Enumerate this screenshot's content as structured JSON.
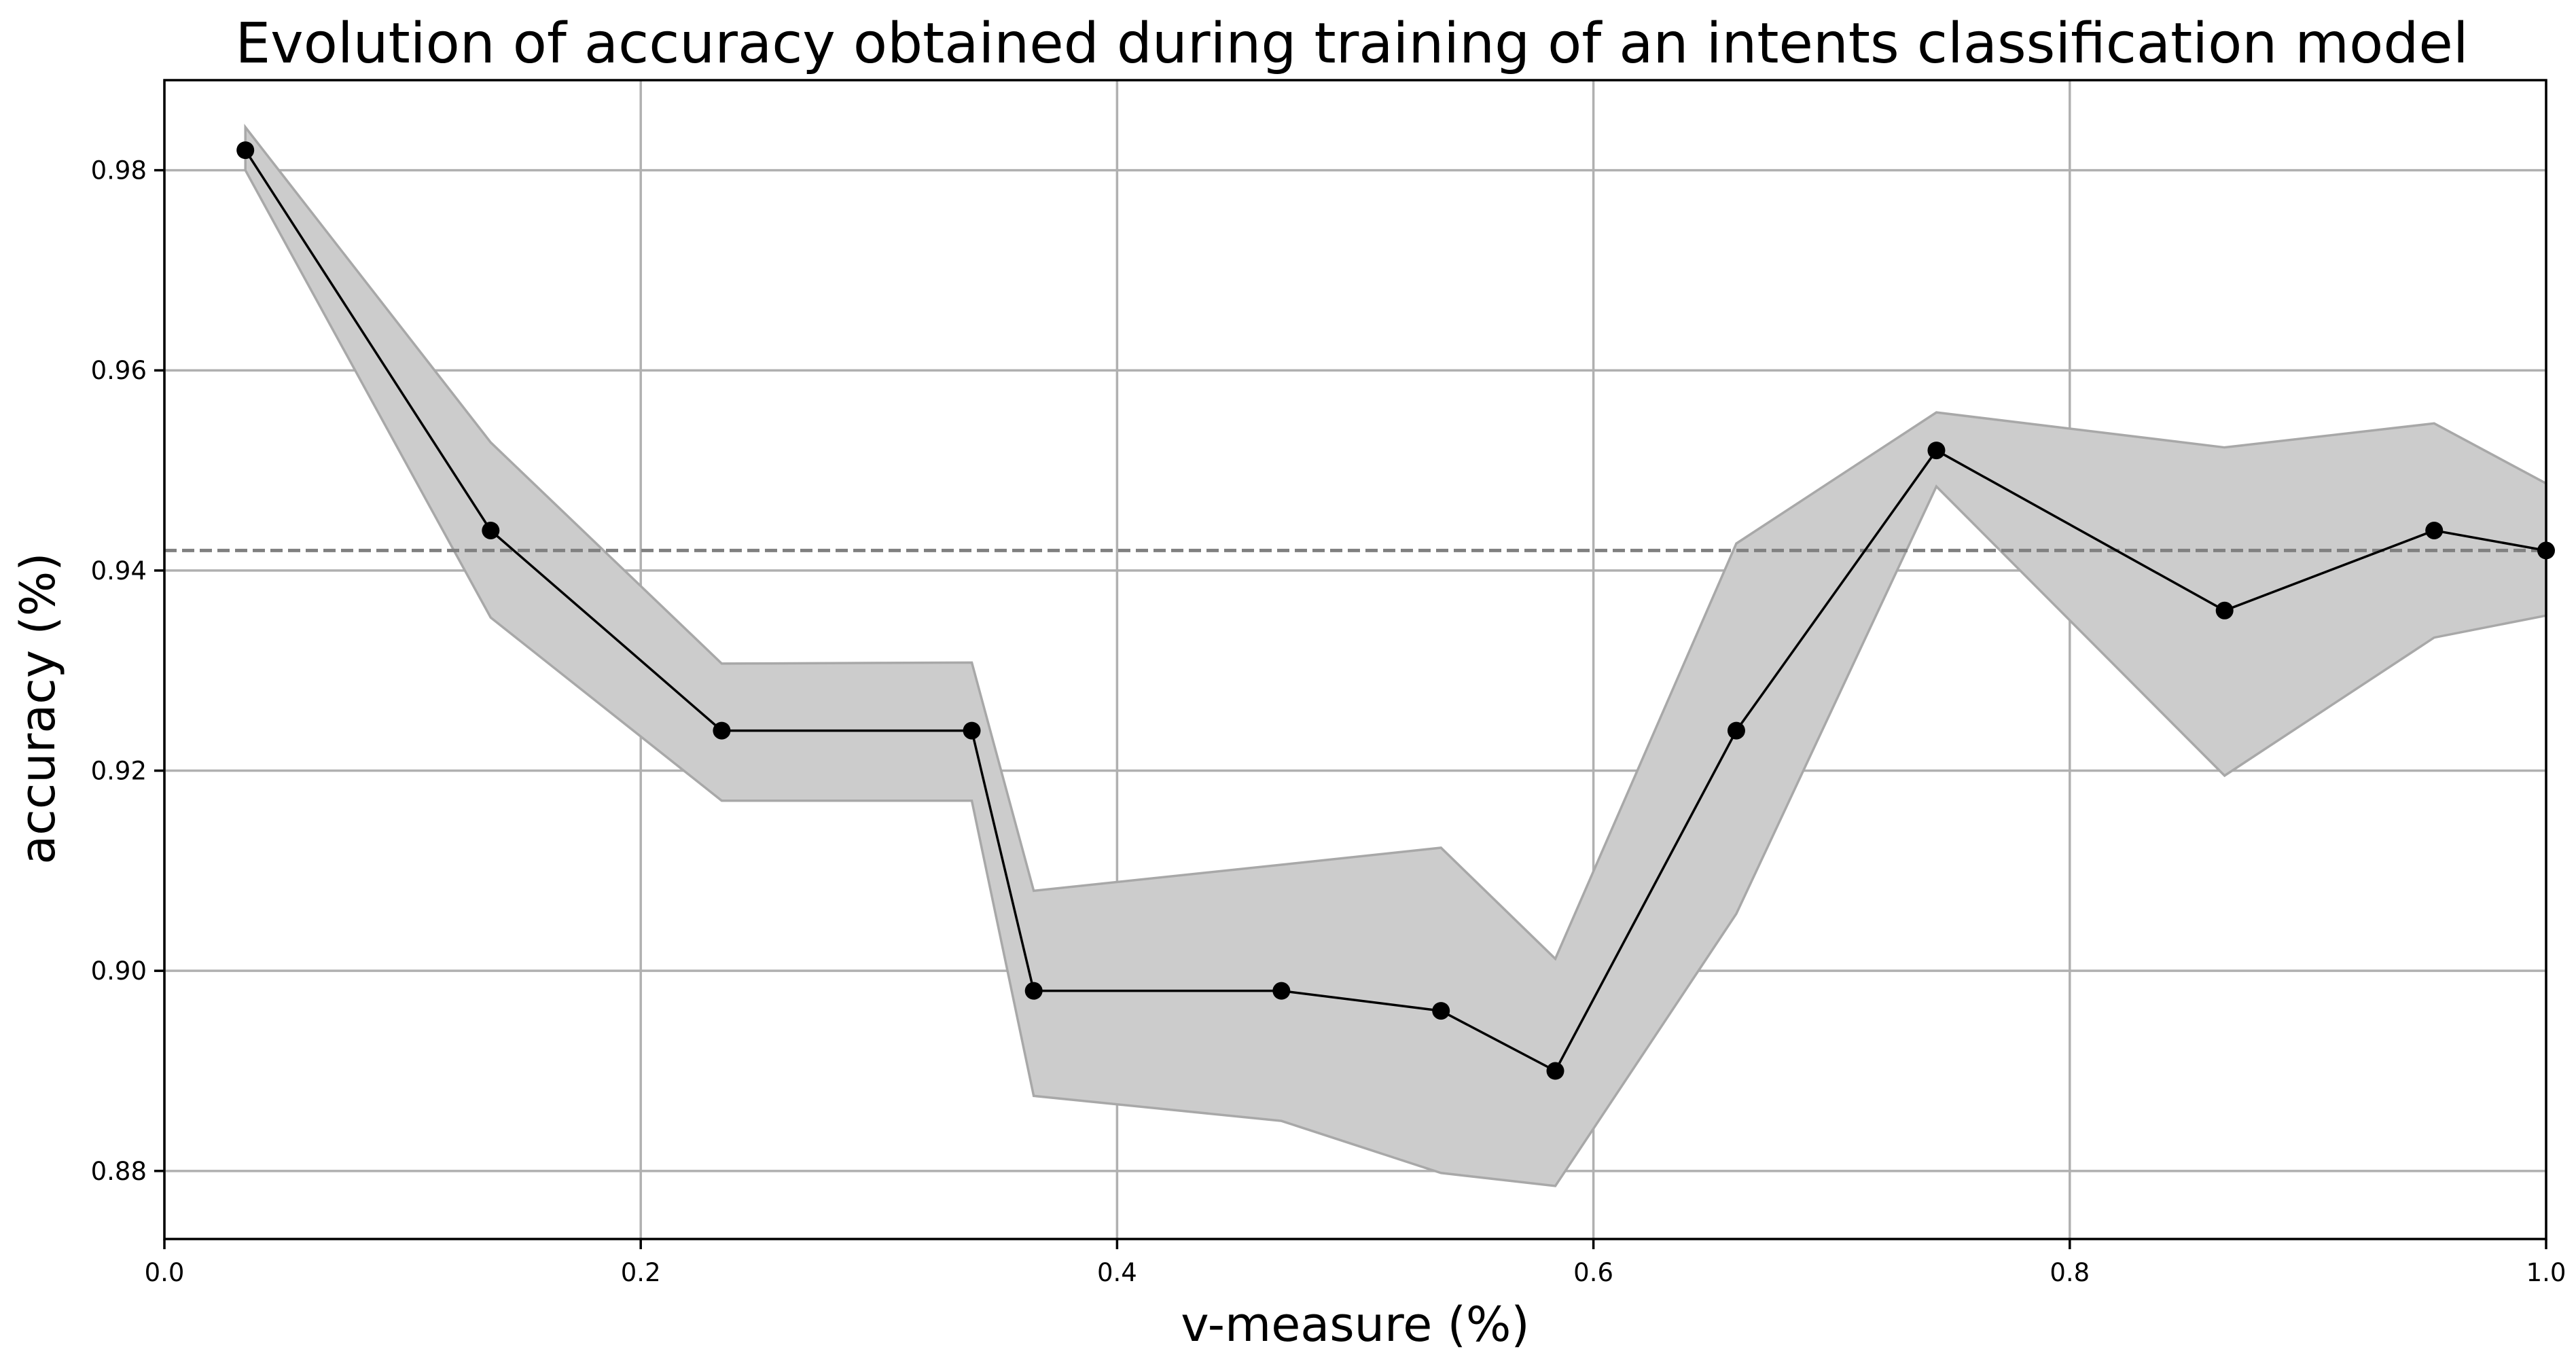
{
  "chart_data": {
    "type": "line",
    "title": "Evolution of accuracy obtained during training of an intents classification model",
    "xlabel": "v-measure (%)",
    "ylabel": "accuracy (%)",
    "xlim": [
      0.0,
      1.0
    ],
    "ylim": [
      0.8732,
      0.989
    ],
    "x_ticks": [
      0.0,
      0.2,
      0.4,
      0.6,
      0.8,
      1.0
    ],
    "x_tick_labels": [
      "0.0",
      "0.2",
      "0.4",
      "0.6",
      "0.8",
      "1.0"
    ],
    "y_ticks": [
      0.88,
      0.9,
      0.92,
      0.94,
      0.96,
      0.98
    ],
    "y_tick_labels": [
      "0.88",
      "0.90",
      "0.92",
      "0.94",
      "0.96",
      "0.98"
    ],
    "grid": true,
    "series": [
      {
        "x": [
          0.034,
          0.137,
          0.234,
          0.339,
          0.365,
          0.469,
          0.536,
          0.584,
          0.66,
          0.744,
          0.865,
          0.953,
          1.0
        ],
        "y": [
          0.982,
          0.944,
          0.924,
          0.924,
          0.898,
          0.898,
          0.896,
          0.89,
          0.924,
          0.952,
          0.936,
          0.944,
          0.942
        ],
        "y_lower": [
          0.98,
          0.9353,
          0.917,
          0.917,
          0.8875,
          0.885,
          0.8798,
          0.8785,
          0.9057,
          0.9484,
          0.9195,
          0.9333,
          0.9355
        ],
        "y_upper": [
          0.9843,
          0.9528,
          0.9307,
          0.9308,
          0.908,
          0.9106,
          0.9123,
          0.9012,
          0.9427,
          0.9558,
          0.9523,
          0.9547,
          0.9487
        ]
      }
    ],
    "reference_line": {
      "orientation": "horizontal",
      "y": 0.942,
      "style": "dashed"
    },
    "colors": {
      "line": "#000000",
      "band": "#cccccc",
      "reference": "#808080",
      "grid": "#b0b0b0"
    }
  }
}
